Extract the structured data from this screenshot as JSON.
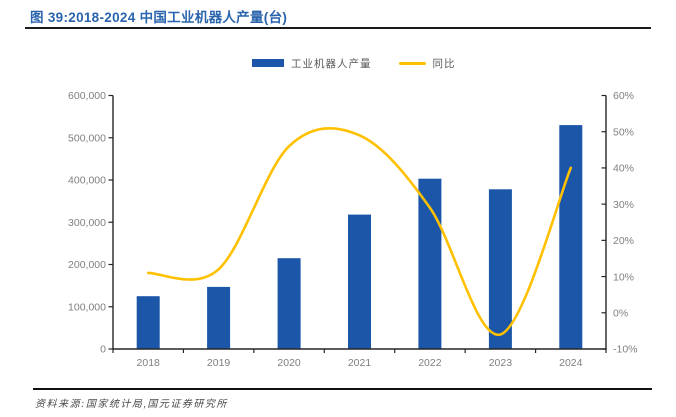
{
  "figure": {
    "title": "图 39:2018-2024 中国工业机器人产量(台)",
    "source": "资料来源:国家统计局,国元证券研究所"
  },
  "legend": {
    "bar_label": "工业机器人产量",
    "line_label": "同比"
  },
  "colors": {
    "bar": "#1B56A8",
    "line": "#FFC000",
    "title": "#2A64AD",
    "axis_text": "#7F7F7F",
    "axis_line": "#262626"
  },
  "chart_data": {
    "type": "bar",
    "title": "2018-2024 中国工业机器人产量(台)",
    "categories": [
      "2018",
      "2019",
      "2020",
      "2021",
      "2022",
      "2023",
      "2024"
    ],
    "series": [
      {
        "name": "工业机器人产量",
        "type": "bar",
        "axis": "left",
        "unit": "台",
        "values": [
          125000,
          147000,
          215000,
          318000,
          403000,
          378000,
          530000
        ]
      },
      {
        "name": "同比",
        "type": "line",
        "axis": "right",
        "unit": "%",
        "values": [
          11,
          12,
          46,
          49,
          29,
          -6,
          40
        ]
      }
    ],
    "left_axis": {
      "min": 0,
      "max": 600000,
      "step": 100000,
      "tick_labels": [
        "0",
        "100,000",
        "200,000",
        "300,000",
        "400,000",
        "500,000",
        "600,000"
      ]
    },
    "right_axis": {
      "min": -10,
      "max": 60,
      "step": 10,
      "tick_labels": [
        "-10%",
        "0%",
        "10%",
        "20%",
        "30%",
        "40%",
        "50%",
        "60%"
      ]
    },
    "grid": false,
    "legend_position": "top-center",
    "line_smoothed": true
  }
}
